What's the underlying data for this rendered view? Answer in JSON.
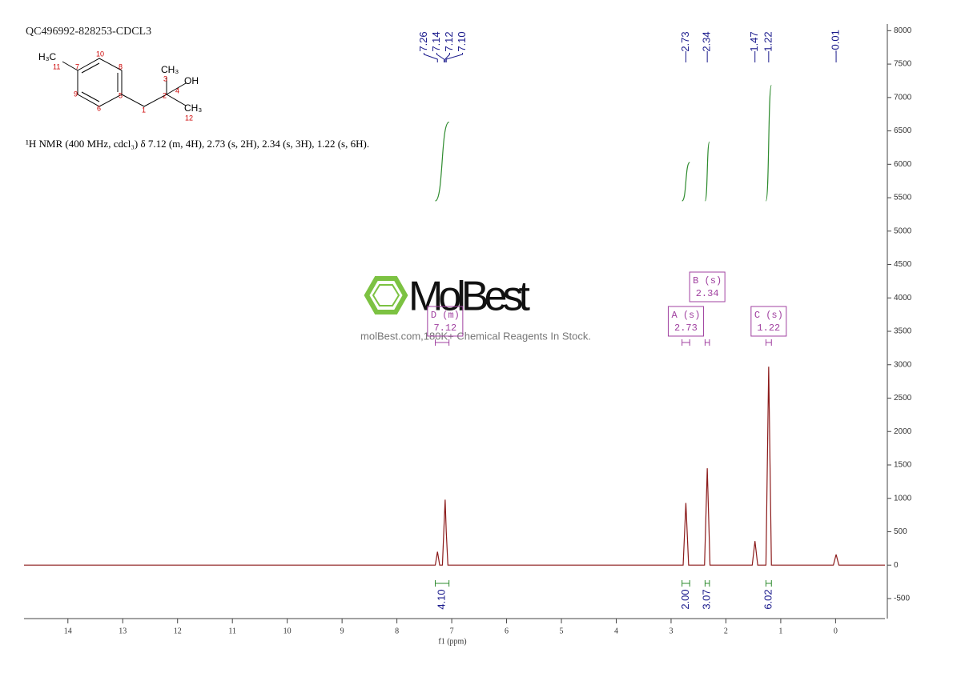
{
  "header": {
    "sample_id": "QC496992-828253-CDCL3",
    "description": "¹H NMR (400 MHz, cdcl₃) δ 7.12 (m, 4H), 2.73 (s, 2H), 2.34 (s, 3H), 1.22 (s, 6H)."
  },
  "structure": {
    "labels": [
      "H₃C",
      "11",
      "10",
      "7",
      "8",
      "9",
      "6",
      "5",
      "1",
      "CH₃",
      "3",
      "2",
      "OH",
      "4",
      "CH₃",
      "12"
    ]
  },
  "watermark": {
    "brand": "MolBest",
    "tagline": "molBest.com,180K+ Chemical Reagents In Stock."
  },
  "chart_data": {
    "type": "line",
    "x_label": "f1 (ppm)",
    "xlim": [
      14.8,
      -0.9
    ],
    "xticks": [
      14,
      13,
      12,
      11,
      10,
      9,
      8,
      7,
      6,
      5,
      4,
      3,
      2,
      1,
      0
    ],
    "ylim": [
      -800,
      8100
    ],
    "yticks": [
      -500,
      0,
      500,
      1000,
      1500,
      2000,
      2500,
      3000,
      3500,
      4000,
      4500,
      5000,
      5500,
      6000,
      6500,
      7000,
      7500,
      8000
    ],
    "color": "#8b1a1a",
    "x": [
      14.8,
      7.3,
      7.26,
      7.22,
      7.17,
      7.14,
      7.12,
      7.1,
      7.07,
      2.78,
      2.73,
      2.68,
      2.39,
      2.34,
      2.29,
      1.52,
      1.47,
      1.42,
      1.27,
      1.22,
      1.17,
      0.04,
      -0.01,
      -0.06,
      -0.9
    ],
    "values": [
      0,
      0,
      200,
      0,
      0,
      600,
      980,
      500,
      0,
      0,
      930,
      0,
      0,
      1450,
      0,
      0,
      360,
      0,
      0,
      2970,
      0,
      0,
      160,
      0,
      0
    ],
    "peak_labels": [
      7.26,
      7.14,
      7.12,
      {
        "value": 7.1,
        "label": "7.10"
      },
      2.73,
      2.34,
      1.47,
      1.22,
      -0.01
    ],
    "integral_color": "#2e8b2e",
    "integrals": [
      {
        "from": 7.3,
        "to": 7.05,
        "value": 4.1,
        "label": "4.10"
      },
      {
        "from": 2.8,
        "to": 2.66,
        "value": 2,
        "label": "2.00"
      },
      {
        "from": 2.38,
        "to": 2.3,
        "value": 3.07
      },
      {
        "from": 1.27,
        "to": 1.17,
        "value": 6.02
      }
    ],
    "multiplet_color": "#a040a0",
    "multiplets": [
      {
        "label": "D (m)",
        "shift": 7.12,
        "from": 7.3,
        "to": 7.05
      },
      {
        "label": "A (s)",
        "shift": 2.73,
        "from": 2.8,
        "to": 2.66
      },
      {
        "label": "B (s)",
        "shift": 2.34,
        "from": 2.38,
        "to": 2.3
      },
      {
        "label": "C (s)",
        "shift": 1.22,
        "from": 1.27,
        "to": 1.17
      }
    ]
  }
}
